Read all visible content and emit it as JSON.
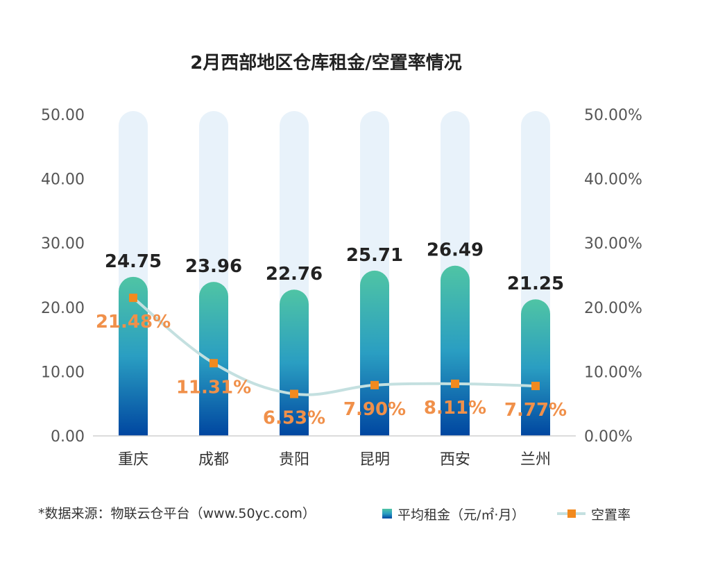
{
  "chart_data": {
    "type": "bar+line",
    "title": "2月西部地区仓库租金/空置率情况",
    "categories": [
      "重庆",
      "成都",
      "贵阳",
      "昆明",
      "西安",
      "兰州"
    ],
    "series": [
      {
        "name": "平均租金（元/㎡·月）",
        "type": "bar",
        "axis": "left",
        "values": [
          24.75,
          23.96,
          22.76,
          25.71,
          26.49,
          21.25
        ],
        "labels": [
          "24.75",
          "23.96",
          "22.76",
          "25.71",
          "26.49",
          "21.25"
        ]
      },
      {
        "name": "空置率",
        "type": "line",
        "axis": "right",
        "values": [
          21.48,
          11.31,
          6.53,
          7.9,
          8.11,
          7.77
        ],
        "labels": [
          "21.48%",
          "11.31%",
          "6.53%",
          "7.90%",
          "8.11%",
          "7.77%"
        ]
      }
    ],
    "left_axis": {
      "range": [
        0,
        50
      ],
      "ticks": [
        "0.00",
        "10.00",
        "20.00",
        "30.00",
        "40.00",
        "50.00"
      ]
    },
    "right_axis": {
      "range": [
        0,
        50
      ],
      "unit": "%",
      "ticks": [
        "0.00%",
        "10.00%",
        "20.00%",
        "30.00%",
        "40.00%",
        "50.00%"
      ]
    },
    "grid": false,
    "legend_placement": "bottom-right",
    "colors": {
      "bar_top": "#4fc4a4",
      "bar_bottom": "#0046a0",
      "bar_track": "#e8f2fa",
      "line": "#c4e0e0",
      "marker": "#f28a1e",
      "line_label": "#f0904a",
      "bar_label": "#222222"
    }
  },
  "source_note": "*数据来源：物联云仓平台（www.50yc.com）"
}
